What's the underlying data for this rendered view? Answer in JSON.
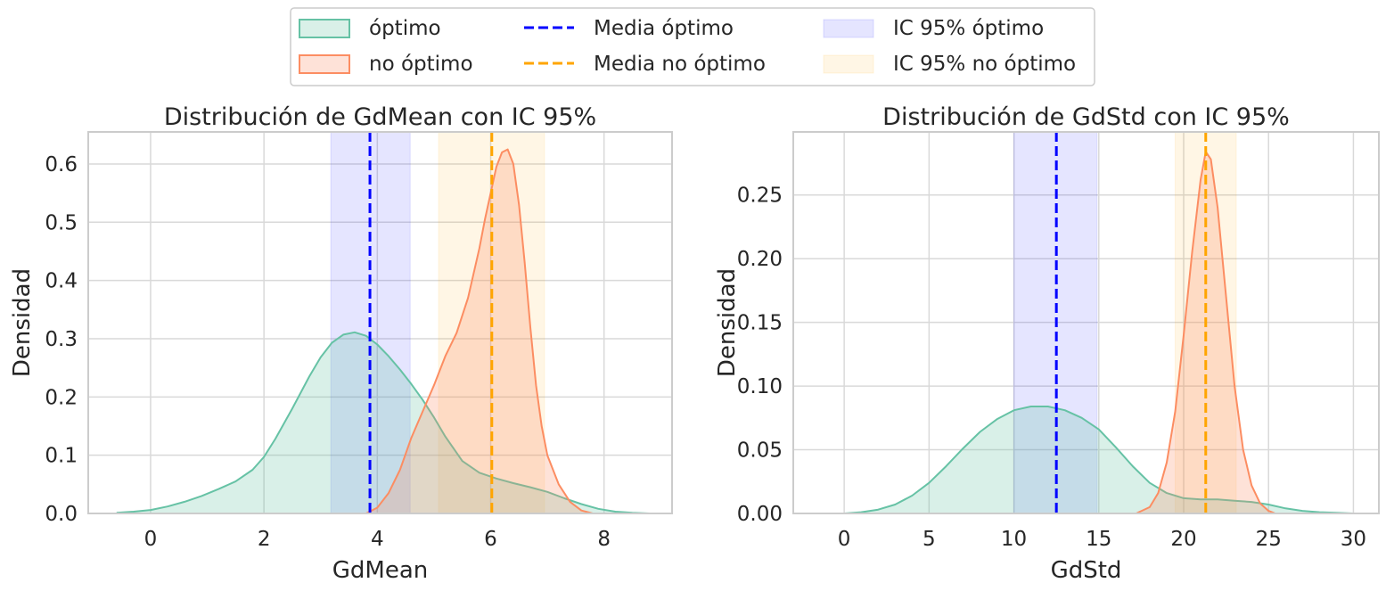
{
  "legend": {
    "entries": [
      {
        "label": "óptimo",
        "kind": "kde",
        "color": "#66c2a5"
      },
      {
        "label": "no óptimo",
        "kind": "kde",
        "color": "#fc8d62"
      },
      {
        "label": "Media óptimo",
        "kind": "mean",
        "color": "#0000ff"
      },
      {
        "label": "Media no óptimo",
        "kind": "mean",
        "color": "#ffa500"
      },
      {
        "label": "IC 95% óptimo",
        "kind": "ci",
        "color": "#0000ff"
      },
      {
        "label": "IC 95% no óptimo",
        "kind": "ci",
        "color": "#ffa500"
      }
    ]
  },
  "chart_data": [
    {
      "type": "area",
      "title": "Distribución de GdMean con IC 95%",
      "xlabel": "GdMean",
      "ylabel": "Densidad",
      "xlim": [
        -1.1,
        9.2
      ],
      "ylim": [
        0,
        0.655
      ],
      "xticks": [
        0,
        2,
        4,
        6,
        8
      ],
      "yticks": [
        0.0,
        0.1,
        0.2,
        0.3,
        0.4,
        0.5,
        0.6
      ],
      "ytick_decimals": 1,
      "grid": true,
      "series": [
        {
          "name": "óptimo",
          "color": "#66c2a5",
          "x": [
            -0.6,
            -0.3,
            0,
            0.3,
            0.6,
            0.9,
            1.2,
            1.5,
            1.8,
            2.0,
            2.2,
            2.5,
            2.8,
            3.0,
            3.2,
            3.4,
            3.6,
            3.8,
            4.0,
            4.2,
            4.4,
            4.6,
            4.8,
            5.0,
            5.2,
            5.5,
            5.8,
            6.1,
            6.4,
            6.7,
            7.0,
            7.3,
            7.6,
            7.9,
            8.2,
            8.5,
            8.8
          ],
          "y": [
            0.001,
            0.003,
            0.006,
            0.012,
            0.02,
            0.03,
            0.042,
            0.055,
            0.075,
            0.097,
            0.128,
            0.18,
            0.235,
            0.268,
            0.293,
            0.307,
            0.311,
            0.305,
            0.29,
            0.27,
            0.247,
            0.222,
            0.195,
            0.165,
            0.132,
            0.09,
            0.07,
            0.06,
            0.052,
            0.045,
            0.037,
            0.026,
            0.016,
            0.008,
            0.003,
            0.001,
            0.0
          ]
        },
        {
          "name": "no óptimo",
          "color": "#fc8d62",
          "x": [
            3.8,
            4.0,
            4.2,
            4.4,
            4.6,
            4.8,
            5.0,
            5.2,
            5.4,
            5.6,
            5.8,
            5.9,
            6.0,
            6.1,
            6.2,
            6.3,
            6.4,
            6.5,
            6.6,
            6.7,
            6.8,
            6.9,
            7.0,
            7.2,
            7.4,
            7.6,
            7.8
          ],
          "y": [
            0.0,
            0.01,
            0.035,
            0.075,
            0.13,
            0.175,
            0.22,
            0.27,
            0.31,
            0.37,
            0.455,
            0.505,
            0.55,
            0.595,
            0.62,
            0.625,
            0.6,
            0.53,
            0.43,
            0.32,
            0.22,
            0.15,
            0.1,
            0.05,
            0.02,
            0.005,
            0.0
          ]
        }
      ],
      "means": [
        {
          "series": "óptimo",
          "x": 3.87,
          "color": "#0000ff"
        },
        {
          "series": "no óptimo",
          "x": 6.02,
          "color": "#ffa500"
        }
      ],
      "ci95": [
        {
          "series": "óptimo",
          "range": [
            3.18,
            4.58
          ],
          "color": "#0000ff"
        },
        {
          "series": "no óptimo",
          "range": [
            5.08,
            6.95
          ],
          "color": "#ffa500"
        }
      ]
    },
    {
      "type": "area",
      "title": "Distribución de GdStd con IC 95%",
      "xlabel": "GdStd",
      "ylabel": "Densidad",
      "xlim": [
        -3.0,
        31.5
      ],
      "ylim": [
        0,
        0.2995
      ],
      "xticks": [
        0,
        5,
        10,
        15,
        20,
        25,
        30
      ],
      "yticks": [
        0.0,
        0.05,
        0.1,
        0.15,
        0.2,
        0.25
      ],
      "ytick_decimals": 2,
      "grid": true,
      "series": [
        {
          "name": "óptimo",
          "color": "#66c2a5",
          "x": [
            0,
            1,
            2,
            3,
            4,
            5,
            6,
            7,
            8,
            9,
            10,
            11,
            12,
            13,
            14,
            15,
            16,
            17,
            18,
            19,
            20,
            21,
            22,
            23,
            24,
            25,
            26,
            27,
            28,
            29,
            30
          ],
          "y": [
            0.0,
            0.001,
            0.003,
            0.007,
            0.014,
            0.024,
            0.037,
            0.051,
            0.064,
            0.074,
            0.081,
            0.084,
            0.084,
            0.081,
            0.075,
            0.066,
            0.052,
            0.037,
            0.024,
            0.016,
            0.012,
            0.011,
            0.011,
            0.01,
            0.009,
            0.007,
            0.004,
            0.002,
            0.001,
            0.0005,
            0.0
          ]
        },
        {
          "name": "no óptimo",
          "color": "#fc8d62",
          "x": [
            17.2,
            18,
            18.5,
            19,
            19.5,
            20,
            20.5,
            21,
            21.3,
            21.6,
            22,
            22.5,
            23,
            23.5,
            24,
            24.5,
            25,
            25.4
          ],
          "y": [
            0.0,
            0.005,
            0.016,
            0.04,
            0.08,
            0.14,
            0.205,
            0.262,
            0.284,
            0.278,
            0.24,
            0.17,
            0.1,
            0.05,
            0.022,
            0.008,
            0.002,
            0.0
          ]
        }
      ],
      "means": [
        {
          "series": "óptimo",
          "x": 12.5,
          "color": "#0000ff"
        },
        {
          "series": "no óptimo",
          "x": 21.3,
          "color": "#ffa500"
        }
      ],
      "ci95": [
        {
          "series": "óptimo",
          "range": [
            10.0,
            14.9
          ],
          "color": "#0000ff"
        },
        {
          "series": "no óptimo",
          "range": [
            19.5,
            23.1
          ],
          "color": "#ffa500"
        }
      ]
    }
  ]
}
